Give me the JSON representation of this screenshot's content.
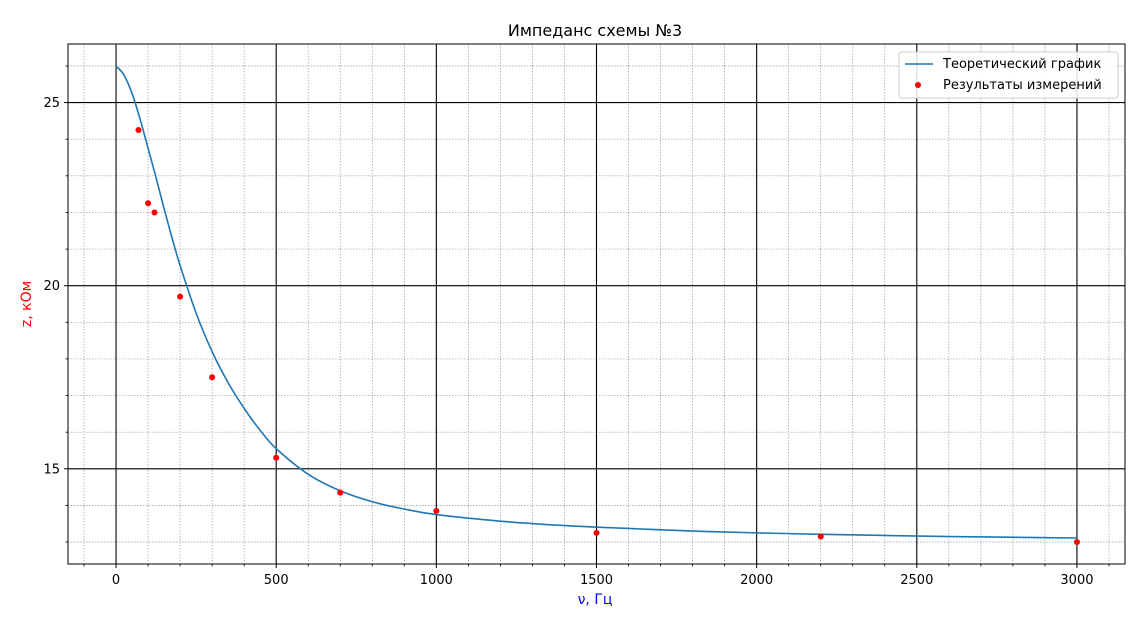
{
  "chart_data": {
    "type": "line",
    "title": "Импеданс схемы №3",
    "xlabel": "ν, Гц",
    "ylabel": "z, кОм",
    "xlabel_color": "#0000ff",
    "ylabel_color": "#ff0000",
    "xlim": [
      -150,
      3150
    ],
    "ylim": [
      12.4,
      26.6
    ],
    "xticks": [
      0,
      500,
      1000,
      1500,
      2000,
      2500,
      3000
    ],
    "yticks": [
      15,
      20,
      25
    ],
    "grid": true,
    "minor_grid": true,
    "legend_position": "top-right",
    "series": [
      {
        "name": "Теоретический график",
        "kind": "line",
        "color": "#1f77b4",
        "x": [
          0,
          25,
          50,
          75,
          100,
          125,
          150,
          175,
          200,
          250,
          300,
          350,
          400,
          450,
          500,
          600,
          700,
          800,
          900,
          1000,
          1200,
          1400,
          1600,
          1800,
          2000,
          2200,
          2400,
          2600,
          2800,
          3000
        ],
        "y": [
          26.0,
          25.75,
          25.25,
          24.55,
          23.75,
          22.95,
          22.1,
          21.3,
          20.55,
          19.25,
          18.2,
          17.35,
          16.65,
          16.05,
          15.55,
          14.85,
          14.4,
          14.1,
          13.9,
          13.75,
          13.57,
          13.45,
          13.37,
          13.3,
          13.25,
          13.21,
          13.18,
          13.15,
          13.13,
          13.11
        ]
      },
      {
        "name": "Результаты измерений",
        "kind": "scatter",
        "color": "#ff0000",
        "x": [
          70,
          100,
          120,
          200,
          300,
          500,
          700,
          1000,
          1500,
          2200,
          3000
        ],
        "y": [
          24.25,
          22.25,
          22.0,
          19.7,
          17.5,
          15.3,
          14.35,
          13.85,
          13.25,
          13.15,
          13.0
        ]
      }
    ]
  }
}
